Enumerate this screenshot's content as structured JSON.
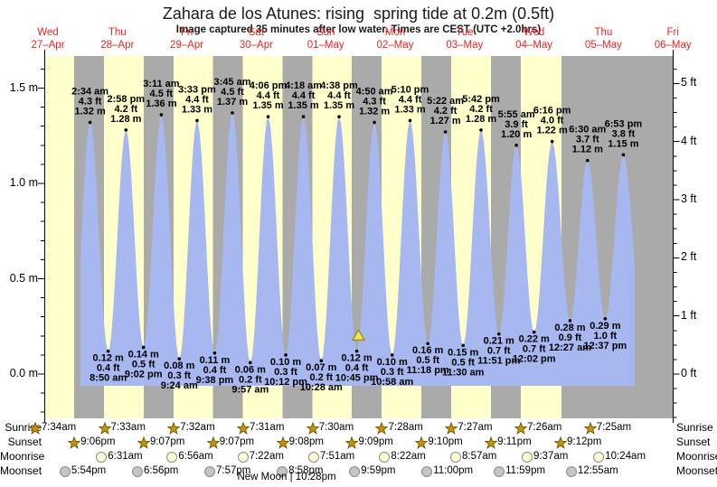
{
  "title": "Zahara de los Atunes: rising  spring tide at 0.2m (0.5ft)",
  "subtitle": "Image captured 35 minutes after low water. Times are CEST (UTC +2.0hrs)",
  "colors": {
    "day_band": "#ffffcc",
    "night_band": "#aaaaaa",
    "tide_fill": "#a7b7f0",
    "date_label": "#ee2222",
    "axis": "#000000",
    "event_text": "#000000",
    "marker_fill": "#f2e34c",
    "marker_stroke": "#8a7a00",
    "sun_icon": "#c89211",
    "sun_icon_stroke": "#7a5c00",
    "moonrise_icon": "#ffffd6",
    "moonset_icon": "#c4c4c4",
    "icon_stroke": "#8a8a8a"
  },
  "chart_data": {
    "type": "area",
    "title": "Zahara de los Atunes: rising  spring tide at 0.2m (0.5ft)",
    "x_axis_days": [
      {
        "dow": "Wed",
        "date": "27–Apr"
      },
      {
        "dow": "Thu",
        "date": "28–Apr"
      },
      {
        "dow": "Fri",
        "date": "29–Apr"
      },
      {
        "dow": "Sat",
        "date": "30–Apr"
      },
      {
        "dow": "Sun",
        "date": "01–May"
      },
      {
        "dow": "Mon",
        "date": "02–May"
      },
      {
        "dow": "Tue",
        "date": "03–May"
      },
      {
        "dow": "Wed",
        "date": "04–May"
      },
      {
        "dow": "Thu",
        "date": "05–May"
      },
      {
        "dow": "Fri",
        "date": "06–May"
      }
    ],
    "y_axis_left": {
      "unit": "m",
      "ticks": [
        "0.0 m",
        "0.5 m",
        "1.0 m",
        "1.5 m"
      ],
      "values": [
        0,
        0.5,
        1.0,
        1.5
      ]
    },
    "y_axis_right": {
      "unit": "ft",
      "ticks": [
        "0 ft",
        "1 ft",
        "2 ft",
        "3 ft",
        "4 ft",
        "5 ft"
      ],
      "values": [
        0,
        1,
        2,
        3,
        4,
        5
      ]
    },
    "events": [
      {
        "kind": "high",
        "day": 1,
        "time": "2:34 am",
        "m": 1.32,
        "ft": 4.3
      },
      {
        "kind": "low",
        "day": 1,
        "time": "8:50 am",
        "m": 0.12,
        "ft": 0.4
      },
      {
        "kind": "high",
        "day": 1,
        "time": "2:58 pm",
        "m": 1.28,
        "ft": 4.2
      },
      {
        "kind": "low",
        "day": 1,
        "time": "9:02 pm",
        "m": 0.14,
        "ft": 0.5
      },
      {
        "kind": "high",
        "day": 2,
        "time": "3:11 am",
        "m": 1.36,
        "ft": 4.5
      },
      {
        "kind": "low",
        "day": 2,
        "time": "9:24 am",
        "m": 0.08,
        "ft": 0.3
      },
      {
        "kind": "high",
        "day": 2,
        "time": "3:33 pm",
        "m": 1.33,
        "ft": 4.4
      },
      {
        "kind": "low",
        "day": 2,
        "time": "9:38 pm",
        "m": 0.11,
        "ft": 0.4
      },
      {
        "kind": "high",
        "day": 3,
        "time": "3:45 am",
        "m": 1.37,
        "ft": 4.5
      },
      {
        "kind": "low",
        "day": 3,
        "time": "9:57 am",
        "m": 0.06,
        "ft": 0.2
      },
      {
        "kind": "high",
        "day": 3,
        "time": "4:06 pm",
        "m": 1.35,
        "ft": 4.4
      },
      {
        "kind": "low",
        "day": 3,
        "time": "10:12 pm",
        "m": 0.1,
        "ft": 0.3
      },
      {
        "kind": "high",
        "day": 4,
        "time": "4:18 am",
        "m": 1.35,
        "ft": 4.4
      },
      {
        "kind": "low",
        "day": 4,
        "time": "10:28 am",
        "m": 0.07,
        "ft": 0.2
      },
      {
        "kind": "high",
        "day": 4,
        "time": "4:38 pm",
        "m": 1.35,
        "ft": 4.4
      },
      {
        "kind": "low",
        "day": 4,
        "time": "10:45 pm",
        "m": 0.12,
        "ft": 0.4
      },
      {
        "kind": "high",
        "day": 5,
        "time": "4:50 am",
        "m": 1.32,
        "ft": 4.3
      },
      {
        "kind": "low",
        "day": 5,
        "time": "10:58 am",
        "m": 0.1,
        "ft": 0.3
      },
      {
        "kind": "high",
        "day": 5,
        "time": "5:10 pm",
        "m": 1.33,
        "ft": 4.4
      },
      {
        "kind": "low",
        "day": 5,
        "time": "11:18 pm",
        "m": 0.16,
        "ft": 0.5
      },
      {
        "kind": "high",
        "day": 6,
        "time": "5:22 am",
        "m": 1.27,
        "ft": 4.2
      },
      {
        "kind": "low",
        "day": 6,
        "time": "11:30 am",
        "m": 0.15,
        "ft": 0.5
      },
      {
        "kind": "high",
        "day": 6,
        "time": "5:42 pm",
        "m": 1.28,
        "ft": 4.2
      },
      {
        "kind": "low",
        "day": 6,
        "time": "11:51 pm",
        "m": 0.21,
        "ft": 0.7
      },
      {
        "kind": "high",
        "day": 7,
        "time": "5:55 am",
        "m": 1.2,
        "ft": 3.9
      },
      {
        "kind": "low",
        "day": 7,
        "time": "12:02 pm",
        "m": 0.22,
        "ft": 0.7
      },
      {
        "kind": "high",
        "day": 7,
        "time": "6:16 pm",
        "m": 1.22,
        "ft": 4.0
      },
      {
        "kind": "low",
        "day": 8,
        "time": "12:27 am",
        "m": 0.28,
        "ft": 0.9
      },
      {
        "kind": "high",
        "day": 8,
        "time": "6:30 am",
        "m": 1.12,
        "ft": 3.7
      },
      {
        "kind": "low",
        "day": 8,
        "time": "12:37 pm",
        "m": 0.29,
        "ft": 1.0
      },
      {
        "kind": "high",
        "day": 8,
        "time": "6:53 pm",
        "m": 1.15,
        "ft": 3.8
      }
    ],
    "now_marker": {
      "day": 4,
      "time": "11:20 pm",
      "m": 0.2
    }
  },
  "astro": {
    "rows": [
      {
        "id": "sunrise",
        "label": "Sunrise",
        "icon": "sun-star",
        "entries": [
          {
            "day": 0,
            "time": "7:34am"
          },
          {
            "day": 1,
            "time": "7:33am"
          },
          {
            "day": 2,
            "time": "7:32am"
          },
          {
            "day": 3,
            "time": "7:31am"
          },
          {
            "day": 4,
            "time": "7:30am"
          },
          {
            "day": 5,
            "time": "7:28am"
          },
          {
            "day": 6,
            "time": "7:27am"
          },
          {
            "day": 7,
            "time": "7:26am"
          },
          {
            "day": 8,
            "time": "7:25am"
          }
        ]
      },
      {
        "id": "sunset",
        "label": "Sunset",
        "icon": "sun-star",
        "entries": [
          {
            "day": 0,
            "time": "9:06pm"
          },
          {
            "day": 1,
            "time": "9:07pm"
          },
          {
            "day": 2,
            "time": "9:07pm"
          },
          {
            "day": 3,
            "time": "9:08pm"
          },
          {
            "day": 4,
            "time": "9:09pm"
          },
          {
            "day": 5,
            "time": "9:10pm"
          },
          {
            "day": 6,
            "time": "9:11pm"
          },
          {
            "day": 7,
            "time": "9:12pm"
          }
        ]
      },
      {
        "id": "moonrise",
        "label": "Moonrise",
        "icon": "moon-light",
        "entries": [
          {
            "day": 1,
            "time": "6:31am"
          },
          {
            "day": 2,
            "time": "6:56am"
          },
          {
            "day": 3,
            "time": "7:22am"
          },
          {
            "day": 4,
            "time": "7:51am"
          },
          {
            "day": 5,
            "time": "8:22am"
          },
          {
            "day": 6,
            "time": "8:57am"
          },
          {
            "day": 7,
            "time": "9:37am"
          },
          {
            "day": 8,
            "time": "10:24am"
          }
        ]
      },
      {
        "id": "moonset",
        "label": "Moonset",
        "icon": "moon-dark",
        "entries": [
          {
            "day": 0,
            "time": "5:54pm"
          },
          {
            "day": 1,
            "time": "6:56pm"
          },
          {
            "day": 2,
            "time": "7:57pm"
          },
          {
            "day": 3,
            "time": "8:58pm"
          },
          {
            "day": 4,
            "time": "9:59pm"
          },
          {
            "day": 5,
            "time": "11:00pm"
          },
          {
            "day": 6,
            "time": "11:59pm"
          },
          {
            "day": 8,
            "time": "12:55am"
          }
        ]
      }
    ],
    "new_moon": {
      "label": "New Moon",
      "time": "10:28pm",
      "display": "New Moon | 10:28pm",
      "day": 3
    }
  }
}
